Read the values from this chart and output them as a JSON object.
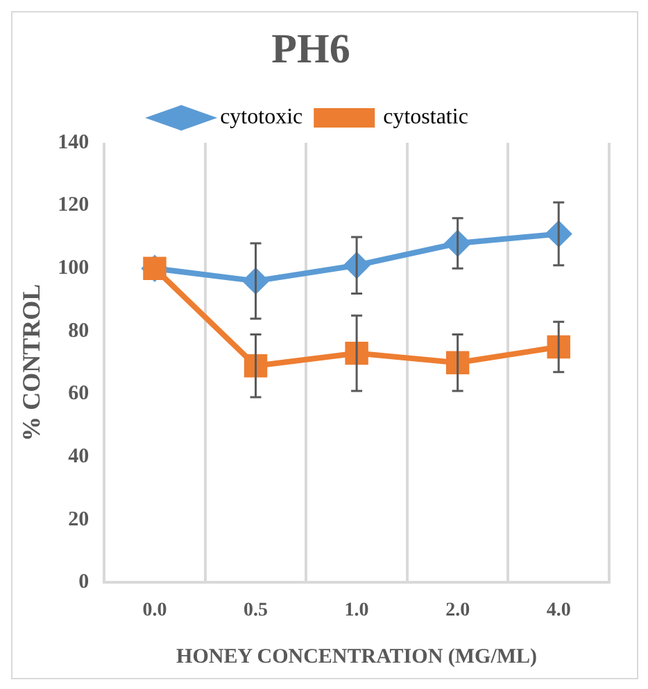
{
  "chart_data": {
    "type": "line",
    "title": "PH6",
    "xlabel": "HONEY CONCENTRATION (MG/ML)",
    "ylabel": "% CONTROL",
    "categories": [
      "0.0",
      "0.5",
      "1.0",
      "2.0",
      "4.0"
    ],
    "series": [
      {
        "name": "cytotoxic",
        "color": "#5b9bd5",
        "marker": "diamond",
        "values": [
          100,
          96,
          101,
          108,
          111
        ],
        "errors": [
          null,
          12,
          9,
          8,
          10
        ]
      },
      {
        "name": "cytostatic",
        "color": "#ed7d31",
        "marker": "square",
        "values": [
          100,
          69,
          73,
          70,
          75
        ],
        "errors": [
          null,
          10,
          12,
          9,
          8
        ]
      }
    ],
    "ylim": [
      0,
      140
    ],
    "yticks": [
      0,
      20,
      40,
      60,
      80,
      100,
      120,
      140
    ],
    "grid": "x",
    "legend": "top"
  }
}
